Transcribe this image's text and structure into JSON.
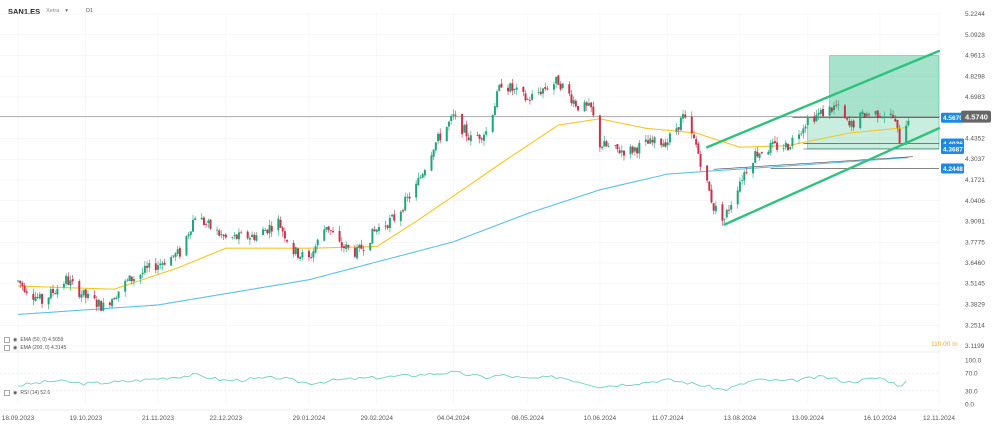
{
  "header": {
    "symbol": "SAN1.ES",
    "exchange": "Xetra",
    "dropdown_icon": "chevron-down-icon",
    "timeframe": "D1"
  },
  "colors": {
    "bull": "#1fa57a",
    "bear": "#c8324b",
    "ema50": "#f5c623",
    "ema200": "#5bc0eb",
    "channel": "#2ec27e",
    "zone_fill": "#3cc28e",
    "tag": "#1e88e5",
    "price_tag": "#666666",
    "rsi": "#6fd0c0"
  },
  "indicators": {
    "ema50_label": "EMA (50, 0) 4.5059",
    "ema200_label": "EMA (200, 0) 4.3145",
    "rsi_label": "RSI (14) 52.6",
    "volume_label": "110.00 m"
  },
  "chart_data": {
    "type": "candlestick",
    "y_ticks": [
      "5.2244",
      "5.0928",
      "4.9613",
      "4.8298",
      "4.6983",
      "4.5668",
      "4.4352",
      "4.3037",
      "4.1721",
      "4.0406",
      "3.9091",
      "3.7775",
      "3.6460",
      "3.5145",
      "3.3829",
      "3.2514",
      "3.1199"
    ],
    "ylim": [
      3.1199,
      5.2244
    ],
    "x_ticks": [
      "18.09.2023",
      "19.10.2023",
      "21.11.2023",
      "22.12.2023",
      "29.01.2024",
      "29.02.2024",
      "04.04.2024",
      "08.05.2024",
      "10.06.2024",
      "11.07.2024",
      "13.08.2024",
      "13.09.2024",
      "16.10.2024",
      "12.11.2024"
    ],
    "current_price": "4.5740",
    "price_tags": [
      "4.5670",
      "4.4036",
      "4.3687",
      "4.2448"
    ],
    "rsi_ticks": [
      "100.0",
      "70.0",
      "30.0",
      "0.0"
    ],
    "anchors": [
      [
        "18.09.2023",
        3.53
      ],
      [
        "29.09.2023",
        3.4
      ],
      [
        "10.10.2023",
        3.54
      ],
      [
        "19.10.2023",
        3.43
      ],
      [
        "27.10.2023",
        3.37
      ],
      [
        "07.11.2023",
        3.53
      ],
      [
        "21.11.2023",
        3.64
      ],
      [
        "01.12.2023",
        3.71
      ],
      [
        "08.12.2023",
        3.95
      ],
      [
        "15.12.2023",
        3.87
      ],
      [
        "22.12.2023",
        3.8
      ],
      [
        "05.01.2024",
        3.82
      ],
      [
        "15.01.2024",
        3.91
      ],
      [
        "22.01.2024",
        3.72
      ],
      [
        "29.01.2024",
        3.67
      ],
      [
        "06.02.2024",
        3.89
      ],
      [
        "12.02.2024",
        3.76
      ],
      [
        "20.02.2024",
        3.71
      ],
      [
        "29.02.2024",
        3.86
      ],
      [
        "08.03.2024",
        3.93
      ],
      [
        "18.03.2024",
        4.13
      ],
      [
        "26.03.2024",
        4.39
      ],
      [
        "04.04.2024",
        4.57
      ],
      [
        "12.04.2024",
        4.43
      ],
      [
        "19.04.2024",
        4.48
      ],
      [
        "26.04.2024",
        4.79
      ],
      [
        "08.05.2024",
        4.68
      ],
      [
        "15.05.2024",
        4.75
      ],
      [
        "22.05.2024",
        4.8
      ],
      [
        "31.05.2024",
        4.64
      ],
      [
        "06.06.2024",
        4.62
      ],
      [
        "10.06.2024",
        4.4
      ],
      [
        "17.06.2024",
        4.36
      ],
      [
        "24.06.2024",
        4.36
      ],
      [
        "01.07.2024",
        4.4
      ],
      [
        "11.07.2024",
        4.42
      ],
      [
        "18.07.2024",
        4.57
      ],
      [
        "24.07.2024",
        4.39
      ],
      [
        "01.08.2024",
        4.0
      ],
      [
        "06.08.2024",
        3.93
      ],
      [
        "13.08.2024",
        4.17
      ],
      [
        "20.08.2024",
        4.34
      ],
      [
        "27.08.2024",
        4.38
      ],
      [
        "04.09.2024",
        4.39
      ],
      [
        "13.09.2024",
        4.56
      ],
      [
        "20.09.2024",
        4.6
      ],
      [
        "26.09.2024",
        4.64
      ],
      [
        "02.10.2024",
        4.51
      ],
      [
        "09.10.2024",
        4.59
      ],
      [
        "16.10.2024",
        4.6
      ],
      [
        "22.10.2024",
        4.57
      ],
      [
        "25.10.2024",
        4.43
      ],
      [
        "29.10.2024",
        4.574
      ]
    ],
    "ema50_anchors": [
      [
        "18.09.2023",
        3.5
      ],
      [
        "01.11.2023",
        3.48
      ],
      [
        "01.12.2023",
        3.62
      ],
      [
        "22.12.2023",
        3.74
      ],
      [
        "29.01.2024",
        3.74
      ],
      [
        "29.02.2024",
        3.75
      ],
      [
        "18.03.2024",
        3.91
      ],
      [
        "04.04.2024",
        4.07
      ],
      [
        "26.04.2024",
        4.28
      ],
      [
        "22.05.2024",
        4.52
      ],
      [
        "10.06.2024",
        4.56
      ],
      [
        "01.07.2024",
        4.5
      ],
      [
        "24.07.2024",
        4.47
      ],
      [
        "13.08.2024",
        4.38
      ],
      [
        "04.09.2024",
        4.39
      ],
      [
        "02.10.2024",
        4.47
      ],
      [
        "29.10.2024",
        4.506
      ]
    ],
    "ema200_anchors": [
      [
        "18.09.2023",
        3.32
      ],
      [
        "21.11.2023",
        3.38
      ],
      [
        "29.01.2024",
        3.54
      ],
      [
        "04.04.2024",
        3.78
      ],
      [
        "08.05.2024",
        3.96
      ],
      [
        "10.06.2024",
        4.11
      ],
      [
        "11.07.2024",
        4.21
      ],
      [
        "06.08.2024",
        4.235
      ],
      [
        "13.09.2024",
        4.27
      ],
      [
        "29.10.2024",
        4.3145
      ]
    ],
    "ema200_tail": [
      [
        "01.08.2024",
        4.24
      ],
      [
        "31.10.2024",
        4.32
      ]
    ],
    "channel_upper": [
      [
        "29.07.2024",
        4.38
      ],
      [
        "12.11.2024",
        4.99
      ]
    ],
    "channel_lower": [
      [
        "06.08.2024",
        3.89
      ],
      [
        "12.11.2024",
        4.5
      ]
    ],
    "zone_upper": {
      "x0": "23.09.2024",
      "x1": "12.11.2024",
      "y0": 4.567,
      "y1": 4.96
    },
    "zone_lower": {
      "x0": "13.09.2024",
      "x1": "12.11.2024",
      "y0": 4.37,
      "y1": 4.567
    },
    "level_lines": [
      {
        "x0": "06.09.2024",
        "x1": "12.11.2024",
        "y": 4.567
      },
      {
        "x0": "11.09.2024",
        "x1": "12.11.2024",
        "y": 4.4036
      },
      {
        "x0": "11.09.2024",
        "x1": "12.11.2024",
        "y": 4.3687
      },
      {
        "x0": "27.08.2024",
        "x1": "12.11.2024",
        "y": 4.2448
      }
    ],
    "rsi_anchors": [
      [
        "18.09.2023",
        42
      ],
      [
        "05.10.2023",
        53
      ],
      [
        "19.10.2023",
        46
      ],
      [
        "06.11.2023",
        51
      ],
      [
        "21.11.2023",
        58
      ],
      [
        "08.12.2023",
        66
      ],
      [
        "22.12.2023",
        53
      ],
      [
        "15.01.2024",
        60
      ],
      [
        "29.01.2024",
        47
      ],
      [
        "12.02.2024",
        55
      ],
      [
        "29.02.2024",
        60
      ],
      [
        "18.03.2024",
        66
      ],
      [
        "04.04.2024",
        72
      ],
      [
        "19.04.2024",
        60
      ],
      [
        "26.04.2024",
        66
      ],
      [
        "08.05.2024",
        57
      ],
      [
        "22.05.2024",
        62
      ],
      [
        "10.06.2024",
        40
      ],
      [
        "24.06.2024",
        46
      ],
      [
        "11.07.2024",
        55
      ],
      [
        "24.07.2024",
        45
      ],
      [
        "06.08.2024",
        32
      ],
      [
        "20.08.2024",
        55
      ],
      [
        "04.09.2024",
        52
      ],
      [
        "20.09.2024",
        62
      ],
      [
        "02.10.2024",
        50
      ],
      [
        "16.10.2024",
        60
      ],
      [
        "25.10.2024",
        42
      ],
      [
        "29.10.2024",
        52.6
      ]
    ]
  }
}
